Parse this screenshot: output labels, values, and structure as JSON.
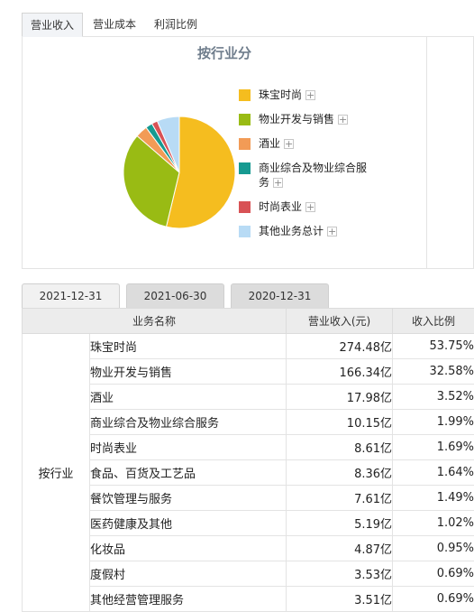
{
  "tabs": [
    {
      "label": "营业收入",
      "active": true
    },
    {
      "label": "营业成本",
      "active": false
    },
    {
      "label": "利润比例",
      "active": false
    }
  ],
  "chart_data": {
    "type": "pie",
    "title": "按行业分",
    "slices": [
      {
        "name": "珠宝时尚",
        "value": 53.75,
        "color": "#f5bd1f"
      },
      {
        "name": "物业开发与销售",
        "value": 32.58,
        "color": "#99bb14"
      },
      {
        "name": "酒业",
        "value": 3.52,
        "color": "#f29b56"
      },
      {
        "name": "商业综合及物业综合服务",
        "value": 1.99,
        "color": "#169a91"
      },
      {
        "name": "时尚表业",
        "value": 1.69,
        "color": "#d85255"
      },
      {
        "name": "其他业务总计",
        "value": 6.47,
        "color": "#b8dbf5"
      }
    ],
    "legend_position": "right"
  },
  "legend_plus": "+",
  "date_tabs": [
    {
      "label": "2021-12-31",
      "active": true
    },
    {
      "label": "2021-06-30",
      "active": false
    },
    {
      "label": "2020-12-31",
      "active": false
    }
  ],
  "table": {
    "headers": [
      "业务名称",
      "营业收入(元)",
      "收入比例"
    ],
    "category": "按行业",
    "rows": [
      {
        "name": "珠宝时尚",
        "revenue": "274.48亿",
        "ratio": "53.75%"
      },
      {
        "name": "物业开发与销售",
        "revenue": "166.34亿",
        "ratio": "32.58%"
      },
      {
        "name": "酒业",
        "revenue": "17.98亿",
        "ratio": "3.52%"
      },
      {
        "name": "商业综合及物业综合服务",
        "revenue": "10.15亿",
        "ratio": "1.99%"
      },
      {
        "name": "时尚表业",
        "revenue": "8.61亿",
        "ratio": "1.69%"
      },
      {
        "name": "食品、百货及工艺品",
        "revenue": "8.36亿",
        "ratio": "1.64%"
      },
      {
        "name": "餐饮管理与服务",
        "revenue": "7.61亿",
        "ratio": "1.49%"
      },
      {
        "name": "医药健康及其他",
        "revenue": "5.19亿",
        "ratio": "1.02%"
      },
      {
        "name": "化妆品",
        "revenue": "4.87亿",
        "ratio": "0.95%"
      },
      {
        "name": "度假村",
        "revenue": "3.53亿",
        "ratio": "0.69%"
      },
      {
        "name": "其他经营管理服务",
        "revenue": "3.51亿",
        "ratio": "0.69%"
      }
    ]
  }
}
